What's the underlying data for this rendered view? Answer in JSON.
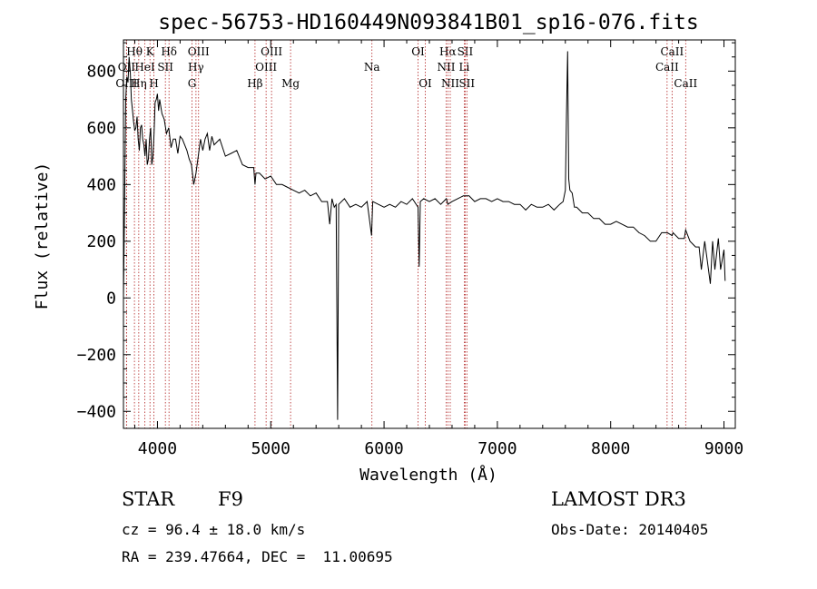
{
  "chart_data": {
    "type": "line",
    "title": "spec-56753-HD160449N093841B01_sp16-076.fits",
    "xlabel": "Wavelength (Å)",
    "ylabel": "Flux (relative)",
    "xlim": [
      3700,
      9100
    ],
    "ylim": [
      -460,
      910
    ],
    "xticks": [
      4000,
      5000,
      6000,
      7000,
      8000,
      9000
    ],
    "yticks": [
      -400,
      -200,
      0,
      200,
      400,
      600,
      800
    ],
    "grid": false,
    "line_color": "#000000",
    "marker_color": "#b22222",
    "series": [
      {
        "x": [
          3700,
          3710,
          3720,
          3730,
          3740,
          3750,
          3760,
          3770,
          3780,
          3790,
          3800,
          3810,
          3820,
          3830,
          3840,
          3850,
          3860,
          3870,
          3880,
          3890,
          3900,
          3910,
          3920,
          3930,
          3940,
          3950,
          3960,
          3970,
          3980,
          3990,
          4000,
          4010,
          4020,
          4040,
          4060,
          4080,
          4100,
          4120,
          4140,
          4160,
          4180,
          4200,
          4220,
          4240,
          4260,
          4280,
          4300,
          4320,
          4340,
          4360,
          4380,
          4400,
          4420,
          4440,
          4460,
          4480,
          4500,
          4550,
          4600,
          4650,
          4700,
          4750,
          4800,
          4850,
          4861,
          4870,
          4900,
          4950,
          5000,
          5050,
          5100,
          5150,
          5200,
          5250,
          5300,
          5350,
          5400,
          5450,
          5500,
          5520,
          5540,
          5560,
          5577,
          5590,
          5600,
          5650,
          5700,
          5750,
          5800,
          5850,
          5890,
          5900,
          5950,
          6000,
          6050,
          6100,
          6150,
          6200,
          6250,
          6300,
          6310,
          6320,
          6350,
          6400,
          6450,
          6500,
          6550,
          6563,
          6600,
          6650,
          6700,
          6750,
          6800,
          6850,
          6900,
          6950,
          7000,
          7050,
          7100,
          7150,
          7200,
          7250,
          7300,
          7350,
          7400,
          7450,
          7500,
          7550,
          7580,
          7600,
          7610,
          7620,
          7630,
          7640,
          7660,
          7680,
          7700,
          7750,
          7800,
          7850,
          7900,
          7950,
          8000,
          8050,
          8100,
          8150,
          8200,
          8250,
          8300,
          8350,
          8400,
          8450,
          8500,
          8542,
          8550,
          8600,
          8650,
          8662,
          8700,
          8750,
          8780,
          8800,
          8830,
          8850,
          8880,
          8900,
          8920,
          8950,
          8970,
          9000,
          9010
        ],
        "y": [
          0,
          320,
          700,
          780,
          760,
          850,
          800,
          700,
          660,
          620,
          590,
          600,
          640,
          560,
          520,
          600,
          610,
          560,
          540,
          500,
          560,
          470,
          490,
          560,
          600,
          470,
          500,
          580,
          690,
          700,
          720,
          660,
          700,
          650,
          630,
          580,
          600,
          530,
          560,
          560,
          510,
          570,
          560,
          540,
          520,
          490,
          470,
          400,
          440,
          500,
          560,
          520,
          560,
          580,
          520,
          570,
          540,
          560,
          500,
          510,
          520,
          470,
          460,
          460,
          400,
          440,
          440,
          420,
          430,
          400,
          400,
          390,
          380,
          370,
          380,
          360,
          370,
          340,
          340,
          260,
          350,
          320,
          330,
          -430,
          330,
          350,
          320,
          330,
          320,
          340,
          220,
          340,
          330,
          320,
          330,
          320,
          340,
          330,
          350,
          320,
          110,
          340,
          350,
          340,
          350,
          330,
          350,
          330,
          340,
          350,
          360,
          360,
          340,
          350,
          350,
          340,
          350,
          340,
          340,
          330,
          330,
          310,
          330,
          320,
          320,
          330,
          310,
          330,
          340,
          380,
          640,
          870,
          420,
          380,
          370,
          320,
          320,
          300,
          300,
          280,
          280,
          260,
          260,
          270,
          260,
          250,
          250,
          230,
          220,
          200,
          200,
          230,
          230,
          220,
          230,
          210,
          210,
          240,
          200,
          180,
          180,
          100,
          200,
          140,
          50,
          200,
          100,
          210,
          100,
          170,
          60
        ]
      }
    ],
    "lines": [
      {
        "label": "Hθ",
        "wavelength": 3797,
        "row": 0
      },
      {
        "label": "OII",
        "wavelength": 3727,
        "row": 1
      },
      {
        "label": "OIII",
        "wavelength": 3727,
        "row": 2
      },
      {
        "label": "K",
        "wavelength": 3934,
        "row": 0
      },
      {
        "label": "HeI",
        "wavelength": 3889,
        "row": 1
      },
      {
        "label": "Hη",
        "wavelength": 3835,
        "row": 2
      },
      {
        "label": "H",
        "wavelength": 3969,
        "row": 2
      },
      {
        "label": "Hδ",
        "wavelength": 4102,
        "row": 0
      },
      {
        "label": "SII",
        "wavelength": 4070,
        "row": 1
      },
      {
        "label": "OIII",
        "wavelength": 4363,
        "row": 0
      },
      {
        "label": "Hγ",
        "wavelength": 4340,
        "row": 1
      },
      {
        "label": "G",
        "wavelength": 4305,
        "row": 2
      },
      {
        "label": "Hβ",
        "wavelength": 4861,
        "row": 2
      },
      {
        "label": "OIII",
        "wavelength": 5007,
        "row": 0
      },
      {
        "label": "OIII",
        "wavelength": 4959,
        "row": 1
      },
      {
        "label": "Mg",
        "wavelength": 5175,
        "row": 2
      },
      {
        "label": "Na",
        "wavelength": 5893,
        "row": 1
      },
      {
        "label": "OI",
        "wavelength": 6300,
        "row": 0
      },
      {
        "label": "OI",
        "wavelength": 6364,
        "row": 2
      },
      {
        "label": "Hα",
        "wavelength": 6563,
        "row": 0
      },
      {
        "label": "SII",
        "wavelength": 6716,
        "row": 0
      },
      {
        "label": "NII",
        "wavelength": 6548,
        "row": 1
      },
      {
        "label": "Li",
        "wavelength": 6708,
        "row": 1
      },
      {
        "label": "NII",
        "wavelength": 6584,
        "row": 2
      },
      {
        "label": "SII",
        "wavelength": 6731,
        "row": 2
      },
      {
        "label": "CaII",
        "wavelength": 8542,
        "row": 0
      },
      {
        "label": "CaII",
        "wavelength": 8498,
        "row": 1
      },
      {
        "label": "CaII",
        "wavelength": 8662,
        "row": 2
      }
    ]
  },
  "info": {
    "object_class": "STAR",
    "subclass": "F9",
    "survey": "LAMOST DR3",
    "cz": "cz = 96.4 ± 18.0 km/s",
    "obs_date": "Obs-Date: 20140405",
    "coords": "RA = 239.47664, DEC =  11.00695"
  }
}
